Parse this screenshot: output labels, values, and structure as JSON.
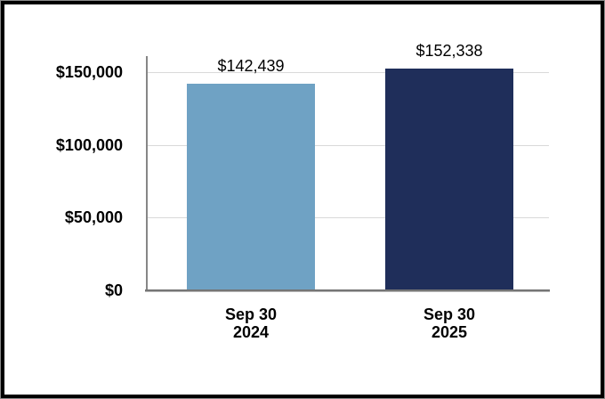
{
  "chart_data": {
    "type": "bar",
    "categories": [
      {
        "line1": "Sep 30",
        "line2": "2024"
      },
      {
        "line1": "Sep 30",
        "line2": "2025"
      }
    ],
    "values": [
      142439,
      152338
    ],
    "value_labels": [
      "$142,439",
      "$152,338"
    ],
    "bar_colors": [
      "#6FA2C4",
      "#1F2E5A"
    ],
    "y_axis": {
      "ticks": [
        {
          "label": "$0",
          "value": 0
        },
        {
          "label": "$50,000",
          "value": 50000
        },
        {
          "label": "$100,000",
          "value": 100000
        },
        {
          "label": "$150,000",
          "value": 150000
        }
      ],
      "ylim": [
        0,
        160000
      ]
    },
    "grid": true,
    "legend": false,
    "title": "",
    "xlabel": "",
    "ylabel": ""
  },
  "frame": {
    "border_color": "#000000",
    "outer_edge_color": "#8a8a8a",
    "axis_color": "#808080",
    "gridline_color": "#d9d9d9",
    "background": "#ffffff"
  }
}
